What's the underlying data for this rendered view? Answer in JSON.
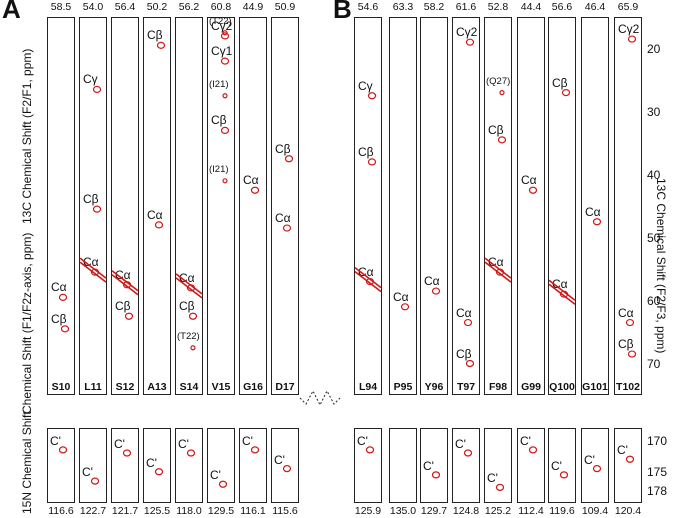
{
  "panels": [
    {
      "letter": "A",
      "strips": [
        {
          "residue": "S10",
          "c_shift": "58.5",
          "n_shift": "116.6",
          "peaks": [
            {
              "t": "Cα",
              "y": 59.5
            },
            {
              "t": "Cβ",
              "y": 64.5
            }
          ],
          "cprime": [
            {
              "t": "C'",
              "y": 171.5
            }
          ]
        },
        {
          "residue": "L11",
          "c_shift": "54.0",
          "n_shift": "122.7",
          "peaks": [
            {
              "t": "Cγ",
              "y": 26.5
            },
            {
              "t": "Cβ",
              "y": 45.5
            },
            {
              "t": "Cα",
              "y": 55.5
            }
          ],
          "cprime": [
            {
              "t": "C'",
              "y": 176.5
            }
          ]
        },
        {
          "residue": "S12",
          "c_shift": "56.4",
          "n_shift": "121.7",
          "peaks": [
            {
              "t": "Cα",
              "y": 57.5
            },
            {
              "t": "Cβ",
              "y": 62.5
            }
          ],
          "cprime": [
            {
              "t": "C'",
              "y": 172.0
            }
          ]
        },
        {
          "residue": "A13",
          "c_shift": "50.2",
          "n_shift": "125.5",
          "peaks": [
            {
              "t": "Cβ",
              "y": 19.5
            },
            {
              "t": "Cα",
              "y": 48.0
            }
          ],
          "cprime": [
            {
              "t": "C'",
              "y": 175.0
            }
          ]
        },
        {
          "residue": "S14",
          "c_shift": "56.2",
          "n_shift": "118.0",
          "peaks": [
            {
              "t": "Cα",
              "y": 58.0
            },
            {
              "t": "Cβ",
              "y": 62.5
            },
            {
              "t": "(T22)",
              "y": 67.5
            }
          ],
          "cprime": [
            {
              "t": "C'",
              "y": 172.0
            }
          ]
        },
        {
          "residue": "V15",
          "c_shift": "60.8",
          "n_shift": "129.5",
          "peaks": [
            {
              "t": "(T22)",
              "y": 17.5
            },
            {
              "t": "Cγ2",
              "y": 18.0
            },
            {
              "t": "Cγ1",
              "y": 22.0
            },
            {
              "t": "(I21)",
              "y": 27.5
            },
            {
              "t": "Cβ",
              "y": 33.0
            },
            {
              "t": "(I21)",
              "y": 41.0
            }
          ],
          "cprime": [
            {
              "t": "C'",
              "y": 177.0
            }
          ]
        },
        {
          "residue": "G16",
          "c_shift": "44.9",
          "n_shift": "116.1",
          "peaks": [
            {
              "t": "Cα",
              "y": 42.5
            }
          ],
          "cprime": [
            {
              "t": "C'",
              "y": 171.5
            }
          ]
        },
        {
          "residue": "D17",
          "c_shift": "50.9",
          "n_shift": "115.6",
          "peaks": [
            {
              "t": "Cβ",
              "y": 37.5
            },
            {
              "t": "Cα",
              "y": 48.5
            }
          ],
          "cprime": [
            {
              "t": "C'",
              "y": 174.5
            }
          ]
        }
      ]
    },
    {
      "letter": "B",
      "strips": [
        {
          "residue": "L94",
          "c_shift": "54.6",
          "n_shift": "125.9",
          "peaks": [
            {
              "t": "Cγ",
              "y": 27.5
            },
            {
              "t": "Cβ",
              "y": 38.0
            },
            {
              "t": "Cα",
              "y": 57.0
            }
          ],
          "cprime": [
            {
              "t": "C'",
              "y": 171.5
            }
          ]
        },
        {
          "residue": "P95",
          "c_shift": "63.3",
          "n_shift": "135.0",
          "peaks": [
            {
              "t": "Cα",
              "y": 61.0
            }
          ],
          "cprime": []
        },
        {
          "residue": "Y96",
          "c_shift": "58.2",
          "n_shift": "129.7",
          "peaks": [
            {
              "t": "Cα",
              "y": 58.5
            }
          ],
          "cprime": [
            {
              "t": "C'",
              "y": 175.5
            }
          ]
        },
        {
          "residue": "T97",
          "c_shift": "61.6",
          "n_shift": "124.8",
          "peaks": [
            {
              "t": "Cγ2",
              "y": 19.0
            },
            {
              "t": "Cα",
              "y": 63.5
            },
            {
              "t": "Cβ",
              "y": 70.0
            }
          ],
          "cprime": [
            {
              "t": "C'",
              "y": 172.0
            }
          ]
        },
        {
          "residue": "F98",
          "c_shift": "52.8",
          "n_shift": "125.2",
          "peaks": [
            {
              "t": "(Q27)",
              "y": 27.0
            },
            {
              "t": "Cβ",
              "y": 34.5
            },
            {
              "t": "Cα",
              "y": 55.5
            }
          ],
          "cprime": [
            {
              "t": "C'",
              "y": 177.5
            }
          ]
        },
        {
          "residue": "G99",
          "c_shift": "44.4",
          "n_shift": "112.4",
          "peaks": [
            {
              "t": "Cα",
              "y": 42.5
            }
          ],
          "cprime": [
            {
              "t": "C'",
              "y": 171.5
            }
          ]
        },
        {
          "residue": "Q100",
          "c_shift": "56.6",
          "n_shift": "119.6",
          "peaks": [
            {
              "t": "Cβ",
              "y": 27.0
            },
            {
              "t": "Cα",
              "y": 59.0
            }
          ],
          "cprime": [
            {
              "t": "C'",
              "y": 175.5
            }
          ]
        },
        {
          "residue": "G101",
          "c_shift": "46.4",
          "n_shift": "109.4",
          "peaks": [
            {
              "t": "Cα",
              "y": 47.5
            }
          ],
          "cprime": [
            {
              "t": "C'",
              "y": 174.5
            }
          ]
        },
        {
          "residue": "T102",
          "c_shift": "65.9",
          "n_shift": "120.4",
          "peaks": [
            {
              "t": "Cγ2",
              "y": 18.5
            },
            {
              "t": "Cα",
              "y": 63.5
            },
            {
              "t": "Cβ",
              "y": 68.5
            }
          ],
          "cprime": [
            {
              "t": "C'",
              "y": 173.0
            }
          ]
        }
      ]
    }
  ],
  "axes": {
    "left_top_label": "13C Chemical Shift (F2/F1, ppm)",
    "left_mid_label": "Chemical Shift (F1/F2z-axis, ppm)",
    "left_bottom_label": "15N Chemical Shift",
    "right_label": "13C Chemical Shift (F2/F3, ppm)",
    "upper_ticks": [
      "20",
      "30",
      "40",
      "50",
      "60",
      "70"
    ],
    "upper_tick_values": [
      20,
      30,
      40,
      50,
      60,
      70
    ],
    "upper_range": [
      15,
      75
    ],
    "lower_ticks": [
      "170",
      "175",
      "178"
    ],
    "lower_tick_values": [
      170,
      175,
      178
    ],
    "lower_range": [
      168,
      180
    ]
  },
  "colors": {
    "peak": "#d01818",
    "frame": "#222222"
  }
}
